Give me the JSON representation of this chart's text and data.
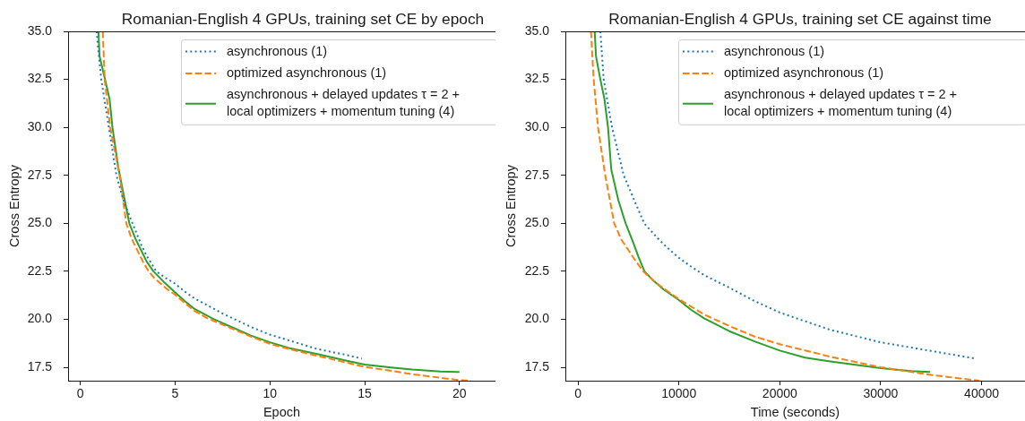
{
  "chart_data": [
    {
      "type": "line",
      "title": "Romanian-English 4 GPUs, training set CE by epoch",
      "xlabel": "Epoch",
      "ylabel": "Cross Entropy",
      "legend": "top right",
      "series": [
        {
          "name": "asynchronous (1)",
          "color": "#1f77b4",
          "line_style": "dotted",
          "x": [
            0.85,
            1.1,
            1.5,
            1.9,
            2.3,
            2.75,
            3.2,
            3.5,
            4.0,
            4.5,
            5.0,
            5.5,
            6.0,
            7.5,
            9.0,
            10.0,
            11.0,
            12.5,
            14.0,
            14.85
          ],
          "values": [
            35.0,
            32.5,
            30.0,
            27.5,
            26.1,
            25.0,
            23.9,
            23.3,
            22.5,
            22.15,
            21.85,
            21.45,
            21.1,
            20.3,
            19.6,
            19.2,
            18.9,
            18.45,
            18.15,
            17.95
          ]
        },
        {
          "name": "optimized asynchronous (1)",
          "color": "#ff7f0e",
          "line_style": "dashed",
          "x": [
            1.18,
            1.28,
            1.57,
            2.07,
            2.42,
            2.7,
            3.0,
            3.3,
            3.6,
            3.9,
            4.3,
            4.6,
            5.0,
            5.5,
            6.0,
            6.7,
            7.5,
            9.0,
            10.0,
            11.0,
            12.5,
            14.0,
            15.0,
            16.5,
            17.5,
            19.0,
            20.0,
            20.6
          ],
          "values": [
            35.0,
            32.5,
            30.0,
            27.5,
            25.0,
            24.2,
            23.6,
            23.0,
            22.5,
            22.15,
            21.8,
            21.55,
            21.28,
            20.85,
            20.45,
            20.05,
            19.72,
            19.1,
            18.72,
            18.45,
            18.1,
            17.75,
            17.52,
            17.3,
            17.14,
            16.95,
            16.83,
            16.8
          ]
        },
        {
          "name": "asynchronous + delayed updates τ = 2 + local optimizers + momentum tuning (4)",
          "color": "#2ca02c",
          "line_style": "solid",
          "x": [
            0.95,
            1.01,
            1.3,
            1.54,
            1.69,
            2.0,
            2.58,
            2.9,
            3.2,
            3.5,
            3.85,
            4.4,
            5.0,
            5.5,
            6.0,
            7.0,
            7.5,
            9.0,
            10.0,
            11.0,
            12.5,
            14.0,
            15.0,
            16.5,
            17.5,
            19.0,
            20.0
          ],
          "values": [
            35.0,
            33.7,
            32.5,
            31.46,
            30.0,
            27.9,
            25.0,
            24.2,
            23.6,
            23.0,
            22.5,
            21.95,
            21.4,
            20.95,
            20.55,
            20.03,
            19.8,
            19.15,
            18.8,
            18.5,
            18.19,
            17.85,
            17.64,
            17.48,
            17.38,
            17.28,
            17.25
          ]
        }
      ],
      "xlim": [
        -0.65,
        21.9
      ],
      "xticks": [
        0,
        5,
        10,
        15,
        20
      ],
      "ylim": [
        16.8,
        35
      ],
      "yticks": [
        17.5,
        {
          "value": 20,
          "label": "20.0"
        },
        22.5,
        {
          "value": 25,
          "label": "25.0"
        },
        27.5,
        {
          "value": 30,
          "label": "30.0"
        },
        32.5,
        {
          "value": 35,
          "label": "35.0"
        }
      ]
    },
    {
      "type": "line",
      "title": "Romanian-English 4 GPUs, training set CE against time",
      "xlabel": "Time (seconds)",
      "ylabel": "Cross Entropy",
      "legend": "top right",
      "series": [
        {
          "name": "asynchronous (1)",
          "color": "#1f77b4",
          "line_style": "dotted",
          "x": [
            2216,
            2547,
            3374,
            4532,
            5500,
            6560,
            7500,
            8500,
            10000,
            11200,
            12500,
            15000,
            17500,
            20000,
            25000,
            30000,
            35000,
            39430
          ],
          "values": [
            35.0,
            32.5,
            30.0,
            27.5,
            26.3,
            25.0,
            24.45,
            23.9,
            23.2,
            22.75,
            22.3,
            21.65,
            20.95,
            20.35,
            19.45,
            18.8,
            18.35,
            17.95
          ]
        },
        {
          "name": "optimized asynchronous (1)",
          "color": "#ff7f0e",
          "line_style": "dashed",
          "x": [
            1290,
            1555,
            1985,
            2700,
            3590,
            4300,
            5000,
            5700,
            6460,
            7500,
            8500,
            10000,
            12500,
            15000,
            17500,
            20000,
            25000,
            30000,
            35000,
            39760
          ],
          "values": [
            35.0,
            32.5,
            30.0,
            27.5,
            25.0,
            24.15,
            23.6,
            23.05,
            22.5,
            22.0,
            21.6,
            21.05,
            20.25,
            19.65,
            19.1,
            18.7,
            18.05,
            17.5,
            17.1,
            16.8
          ]
        },
        {
          "name": "asynchronous + delayed updates τ = 2 + local optimizers + momentum tuning (4)",
          "color": "#2ca02c",
          "line_style": "solid",
          "x": [
            1654,
            1786,
            2216,
            2613,
            2977,
            3300,
            4000,
            4720,
            5400,
            6000,
            6590,
            7500,
            8500,
            10000,
            11200,
            12500,
            15000,
            17500,
            20000,
            22500,
            25000,
            30000,
            33000,
            34900
          ],
          "values": [
            35.0,
            33.7,
            32.5,
            31.5,
            30.0,
            27.8,
            26.2,
            25.0,
            24.1,
            23.25,
            22.5,
            22.0,
            21.55,
            21.0,
            20.5,
            20.05,
            19.38,
            18.85,
            18.37,
            18.0,
            17.8,
            17.45,
            17.3,
            17.25
          ]
        }
      ],
      "xlim": [
        -1250,
        44300
      ],
      "xticks": [
        0,
        10000,
        20000,
        30000,
        40000
      ],
      "ylim": [
        16.8,
        35
      ],
      "yticks": [
        17.5,
        {
          "value": 20,
          "label": "20.0"
        },
        22.5,
        {
          "value": 25,
          "label": "25.0"
        },
        27.5,
        {
          "value": 30,
          "label": "30.0"
        },
        32.5,
        {
          "value": 35,
          "label": "35.0"
        }
      ]
    }
  ]
}
